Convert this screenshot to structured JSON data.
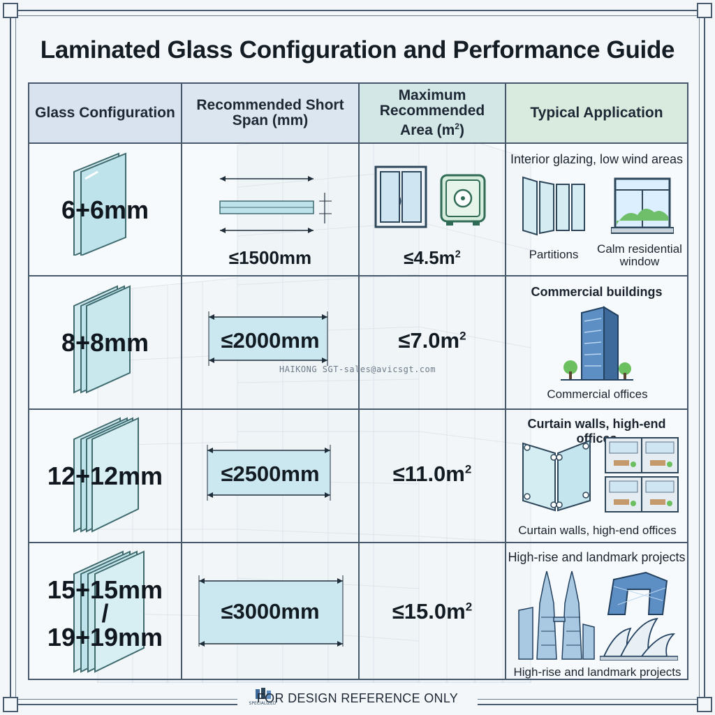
{
  "title": "Laminated Glass Configuration and Performance Guide",
  "table": {
    "headers": {
      "configuration": "Glass Configuration",
      "span": "Recommended Short Span (mm)",
      "area_line1": "Maximum",
      "area_line2": "Recommended",
      "area_line3": "Area (m",
      "area_sup": "2",
      "area_close": ")",
      "application": "Typical Application"
    },
    "rows": [
      {
        "configuration": "6+6mm",
        "span": "≤1500mm",
        "area": "≤4.5m",
        "area_sup": "2",
        "application_title": "Interior glazing, low wind areas",
        "captions": [
          "Partitions",
          "Calm residential window"
        ],
        "icons": [
          "window-icon",
          "safe-icon",
          "partition-panels-icon",
          "residential-window-icon"
        ]
      },
      {
        "configuration": "8+8mm",
        "span": "≤2000mm",
        "area": "≤7.0m",
        "area_sup": "2",
        "application_title": "Commercial buildings",
        "captions": [
          "Commercial offices"
        ],
        "icons": [
          "office-tower-icon"
        ]
      },
      {
        "configuration": "12+12mm",
        "span": "≤2500mm",
        "area": "≤11.0m",
        "area_sup": "2",
        "application_title": "Curtain walls, high-end offices",
        "captions": [
          "Curtain walls, high-end offices"
        ],
        "icons": [
          "curtain-wall-icon",
          "office-interior-icon"
        ]
      },
      {
        "configuration_line1": "15+15mm",
        "configuration_line2": "/",
        "configuration_line3": "19+19mm",
        "span": "≤3000mm",
        "area": "≤15.0m",
        "area_sup": "2",
        "application_title": "High-rise and landmark projects",
        "captions": [
          "High-rise and landmark projects"
        ],
        "icons": [
          "twin-towers-icon",
          "cctv-building-icon",
          "opera-house-icon"
        ]
      }
    ]
  },
  "watermark": "HAIKONG SGT-sales@avicsgt.com",
  "footer": "FOR DESIGN REFERENCE ONLY",
  "logo_text": "SPECIALIZED",
  "colors": {
    "header_blue": "#d8e3ef",
    "header_teal": "#d4e7e7",
    "header_green": "#d9ebdf",
    "glass": "#bfe3ea",
    "grid": "#46586a"
  }
}
